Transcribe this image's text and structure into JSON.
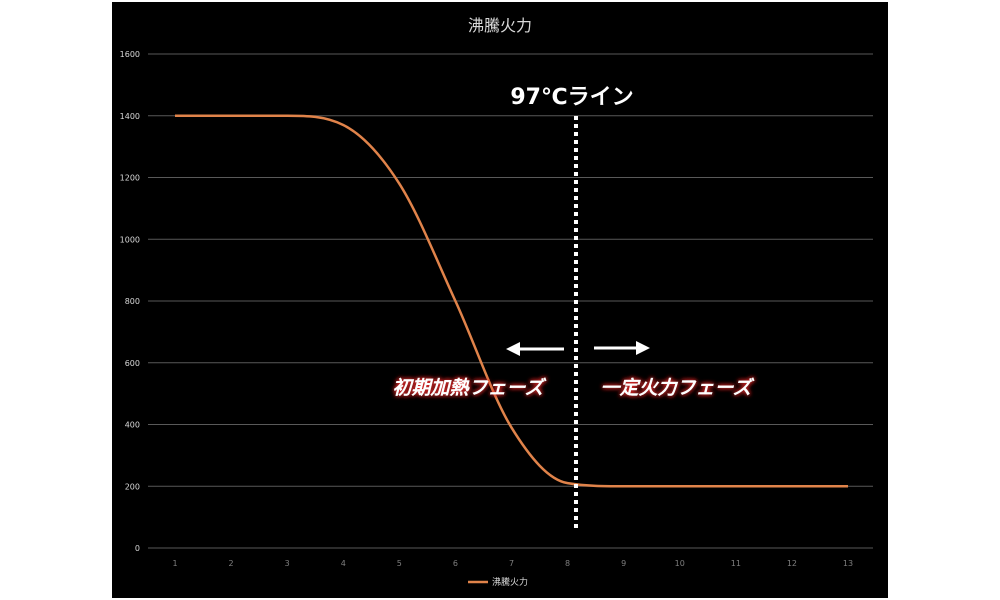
{
  "chart_data": {
    "type": "line",
    "title": "沸騰火力",
    "xlabel": "",
    "ylabel": "",
    "categories": [
      "1",
      "2",
      "3",
      "4",
      "5",
      "6",
      "7",
      "8",
      "9",
      "10",
      "11",
      "12",
      "13"
    ],
    "x": [
      1,
      2,
      3,
      4,
      5,
      6,
      7,
      8,
      9,
      10,
      11,
      12,
      13
    ],
    "ylim": [
      0,
      1600
    ],
    "yticks": [
      0,
      200,
      400,
      600,
      800,
      1000,
      1200,
      1400,
      1600
    ],
    "grid": true,
    "legend_position": "bottom",
    "series": [
      {
        "name": "沸騰火力",
        "color": "#e0834a",
        "values": [
          1400,
          1400,
          1400,
          1370,
          1180,
          800,
          390,
          210,
          200,
          200,
          200,
          200,
          200
        ]
      }
    ],
    "annotations": {
      "vertical_line_x": 8.15,
      "vertical_line_label": "97℃ライン",
      "left_phase_label": "初期加熱フェーズ",
      "right_phase_label": "一定火力フェーズ"
    }
  }
}
